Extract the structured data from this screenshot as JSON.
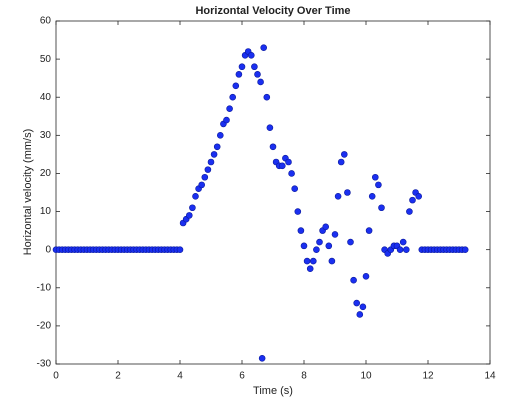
{
  "chart_data": {
    "type": "scatter",
    "title": "Horizontal Velocity Over Time",
    "x_label": "Time (s)",
    "y_label": "Horizontal velocity (mm/s)",
    "color": "#1a2ff0",
    "x": [
      0,
      0.1,
      0.2,
      0.3,
      0.4,
      0.5,
      0.6,
      0.7,
      0.8,
      0.9,
      1,
      1.1,
      1.2,
      1.3,
      1.4,
      1.5,
      1.6,
      1.7,
      1.8,
      1.9,
      2,
      2.1,
      2.2,
      2.3,
      2.4,
      2.5,
      2.6,
      2.7,
      2.8,
      2.9,
      3,
      3.1,
      3.2,
      3.3,
      3.4,
      3.5,
      3.6,
      3.7,
      3.8,
      3.9,
      4,
      4.1,
      4.2,
      4.3,
      4.4,
      4.5,
      4.6,
      4.7,
      4.8,
      4.9,
      5,
      5.1,
      5.2,
      5.3,
      5.4,
      5.5,
      5.6,
      5.7,
      5.8,
      5.9,
      6,
      6.1,
      6.2,
      6.3,
      6.4,
      6.5,
      6.6,
      6.7,
      6.8,
      6.9,
      7,
      7.1,
      7.2,
      7.3,
      7.4,
      7.5,
      7.6,
      7.7,
      7.8,
      7.9,
      8,
      8.1,
      8.2,
      8.3,
      8.4,
      8.5,
      8.6,
      8.7,
      8.8,
      8.9,
      9,
      9.1,
      9.2,
      9.3,
      9.4,
      9.5,
      9.6,
      9.7,
      9.8,
      9.9,
      10,
      10.1,
      10.2,
      10.3,
      10.4,
      10.5,
      10.6,
      10.7,
      10.8,
      10.9,
      11,
      11.1,
      11.2,
      11.3,
      11.4,
      11.5,
      11.6,
      11.7,
      11.8,
      11.9,
      12,
      12.1,
      12.2,
      12.3,
      12.4,
      12.5,
      12.6,
      12.7,
      12.8,
      12.9,
      13,
      13.1,
      13.2,
      6.65
    ],
    "values": [
      0,
      0,
      0,
      0,
      0,
      0,
      0,
      0,
      0,
      0,
      0,
      0,
      0,
      0,
      0,
      0,
      0,
      0,
      0,
      0,
      0,
      0,
      0,
      0,
      0,
      0,
      0,
      0,
      0,
      0,
      0,
      0,
      0,
      0,
      0,
      0,
      0,
      0,
      0,
      0,
      0,
      7,
      8,
      9,
      11,
      14,
      16,
      17,
      19,
      21,
      23,
      25,
      27,
      30,
      33,
      34,
      37,
      40,
      43,
      46,
      48,
      51,
      52,
      51,
      48,
      46,
      44,
      53,
      40,
      32,
      27,
      23,
      22,
      22,
      24,
      23,
      20,
      16,
      10,
      5,
      1,
      -3,
      -5,
      -3,
      0,
      2,
      5,
      6,
      1,
      -3,
      4,
      14,
      23,
      25,
      15,
      2,
      -8,
      -14,
      -17,
      -15,
      -7,
      5,
      14,
      19,
      17,
      11,
      0,
      -1,
      0,
      1,
      1,
      0,
      2,
      0,
      10,
      13,
      15,
      14,
      0,
      0,
      0,
      0,
      0,
      0,
      0,
      0,
      0,
      0,
      0,
      0,
      0,
      0,
      0,
      -28.5
    ],
    "xlim": [
      0,
      14
    ],
    "ylim": [
      -30,
      60
    ],
    "xticks": [
      0,
      2,
      4,
      6,
      8,
      10,
      12,
      14
    ],
    "yticks": [
      -30,
      -20,
      -10,
      0,
      10,
      20,
      30,
      40,
      50,
      60
    ]
  }
}
